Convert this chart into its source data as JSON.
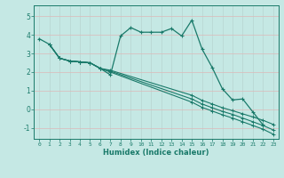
{
  "xlabel": "Humidex (Indice chaleur)",
  "xlim": [
    -0.5,
    23.5
  ],
  "ylim": [
    -1.6,
    5.6
  ],
  "yticks": [
    -1,
    0,
    1,
    2,
    3,
    4,
    5
  ],
  "xticks": [
    0,
    1,
    2,
    3,
    4,
    5,
    6,
    7,
    8,
    9,
    10,
    11,
    12,
    13,
    14,
    15,
    16,
    17,
    18,
    19,
    20,
    21,
    22,
    23
  ],
  "bg_color": "#c5e8e4",
  "grid_color": "#b0d8d2",
  "line_color": "#1a7a6a",
  "lines": [
    {
      "x": [
        0,
        1,
        2,
        3,
        4,
        5,
        6,
        7,
        8,
        9,
        10,
        11,
        12,
        13,
        14,
        15,
        16,
        17,
        18,
        19,
        20,
        21,
        22
      ],
      "y": [
        3.8,
        3.5,
        2.75,
        2.6,
        2.55,
        2.5,
        2.2,
        1.85,
        3.95,
        4.4,
        4.15,
        4.15,
        4.15,
        4.35,
        3.95,
        4.8,
        3.25,
        2.25,
        1.1,
        0.5,
        0.55,
        -0.15,
        -0.85
      ]
    },
    {
      "x": [
        1,
        2,
        3,
        4,
        5,
        6,
        7,
        15,
        16,
        17,
        18,
        19,
        20,
        21,
        22,
        23
      ],
      "y": [
        3.5,
        2.75,
        2.6,
        2.55,
        2.5,
        2.2,
        2.1,
        0.75,
        0.48,
        0.28,
        0.08,
        -0.08,
        -0.25,
        -0.42,
        -0.6,
        -0.82
      ]
    },
    {
      "x": [
        1,
        2,
        3,
        4,
        5,
        6,
        7,
        15,
        16,
        17,
        18,
        19,
        20,
        21,
        22,
        23
      ],
      "y": [
        3.5,
        2.75,
        2.6,
        2.55,
        2.5,
        2.2,
        2.05,
        0.55,
        0.28,
        0.08,
        -0.12,
        -0.28,
        -0.48,
        -0.68,
        -0.88,
        -1.12
      ]
    },
    {
      "x": [
        1,
        2,
        3,
        4,
        5,
        6,
        7,
        15,
        16,
        17,
        18,
        19,
        20,
        21,
        22,
        23
      ],
      "y": [
        3.5,
        2.75,
        2.6,
        2.55,
        2.5,
        2.2,
        2.0,
        0.38,
        0.1,
        -0.1,
        -0.3,
        -0.48,
        -0.68,
        -0.88,
        -1.08,
        -1.35
      ]
    }
  ]
}
